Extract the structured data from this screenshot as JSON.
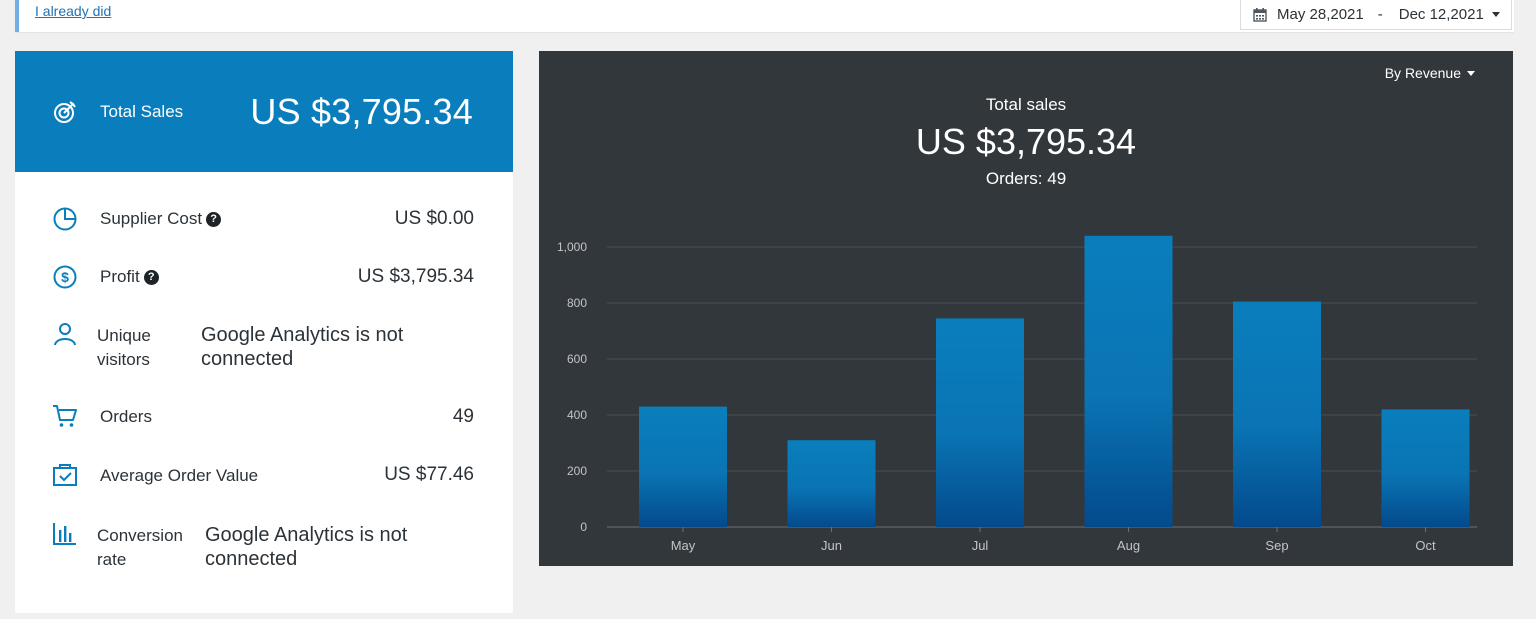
{
  "notice": {
    "link_label": "I already did"
  },
  "date_range": {
    "start": "May 28,2021",
    "separator": "-",
    "end": "Dec 12,2021"
  },
  "summary": {
    "total_sales": {
      "label": "Total Sales",
      "value": "US $3,795.34"
    },
    "supplier_cost": {
      "label": "Supplier Cost",
      "value": "US $0.00",
      "help": "?"
    },
    "profit": {
      "label": "Profit",
      "value": "US $3,795.34",
      "help": "?"
    },
    "unique_visitors": {
      "label": "Unique visitors",
      "value": "Google Analytics is not connected"
    },
    "orders": {
      "label": "Orders",
      "value": "49"
    },
    "average_order_value": {
      "label": "Average Order Value",
      "value": "US $77.46"
    },
    "conversion_rate": {
      "label": "Conversion rate",
      "value": "Google Analytics is not connected"
    }
  },
  "chart_panel": {
    "mode_label": "By Revenue",
    "title": "Total sales",
    "total": "US $3,795.34",
    "orders": "Orders: 49"
  },
  "colors": {
    "accent": "#0a7ebc",
    "chart_bg": "#32373c",
    "bar_top": "#0a7ebc",
    "bar_bottom": "#034a8c"
  },
  "chart_data": {
    "type": "bar",
    "categories": [
      "May",
      "Jun",
      "Jul",
      "Aug",
      "Sep",
      "Oct"
    ],
    "values": [
      430,
      310,
      745,
      1040,
      805,
      420
    ],
    "yticks": [
      "0",
      "200",
      "400",
      "600",
      "800",
      "1,000"
    ],
    "ytick_values": [
      0,
      200,
      400,
      600,
      800,
      1000
    ],
    "ylim": [
      0,
      1000
    ],
    "grid": true
  }
}
